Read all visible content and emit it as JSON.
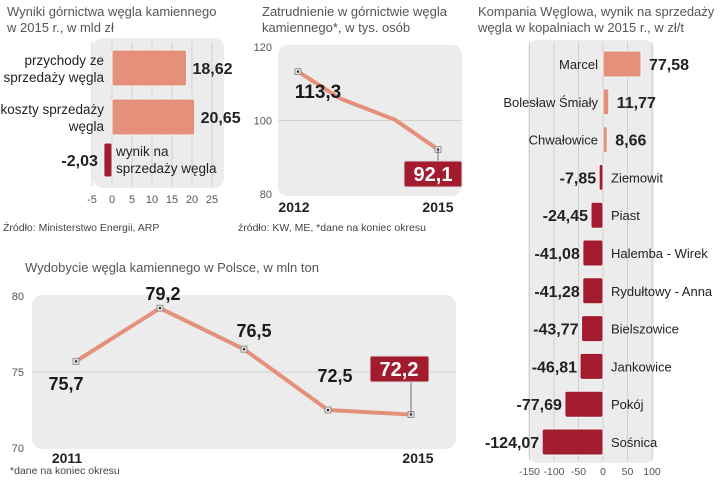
{
  "colors": {
    "positive_bar": "#e4907a",
    "negative_bar": "#a31b2e",
    "line": "#e4907a",
    "panel": "#ececec",
    "grid": "#c8c8c8",
    "highlight_label_bg": "#a31b2e"
  },
  "chart_data": [
    {
      "id": "mining-results",
      "type": "bar",
      "orientation": "horizontal",
      "title": "Wyniki górnictwa węgla kamiennego w 2015 r., w mld zł",
      "categories": [
        "przychody ze sprzedaży węgla",
        "koszty sprzedaży węgla",
        "wynik na sprzedaży węgla"
      ],
      "category_lines": [
        [
          "przychody ze",
          "sprzedaży węgla"
        ],
        [
          "koszty sprzedaży",
          "węgla"
        ],
        [
          "wynik na",
          "sprzedaży węgla"
        ]
      ],
      "values": [
        18.62,
        20.65,
        -2.03
      ],
      "value_labels": [
        "18,62",
        "20,65",
        "-2,03"
      ],
      "xlim": [
        -5,
        25
      ],
      "xticks": [
        "-5",
        "0",
        "5",
        "10",
        "15",
        "20",
        "25"
      ],
      "xtick_values": [
        -5,
        0,
        5,
        10,
        15,
        20,
        25
      ],
      "grid": true,
      "source": "Źródło: Ministerstwo Energii, ARP"
    },
    {
      "id": "employment",
      "type": "line",
      "title": "Zatrudnienie w górnictwie węgla kamiennego*, w tys. osób",
      "x": [
        "2012",
        "2013",
        "2014",
        "2015"
      ],
      "x_labels_shown": [
        "2012",
        "2015"
      ],
      "values": [
        113.3,
        106.0,
        100.2,
        92.1
      ],
      "point_labels": {
        "0": "113,3",
        "3": "92,1"
      },
      "highlighted_point": 3,
      "ylim": [
        80,
        120
      ],
      "yticks": [
        "80",
        "100",
        "120"
      ],
      "ytick_values": [
        80,
        100,
        120
      ],
      "grid": true,
      "source": "źródło: KW, ME,  *dane na koniec okresu"
    },
    {
      "id": "kw-mines",
      "type": "bar",
      "orientation": "horizontal",
      "title": "Kompania Węglowa, wynik na sprzedaży węgla w kopalniach w 2015 r., w zł/t",
      "categories": [
        "Marcel",
        "Bolesław Śmiały",
        "Chwałowice",
        "Ziemowit",
        "Piast",
        "Halemba - Wirek",
        "Rydułtowy - Anna",
        "Bielszowice",
        "Jankowice",
        "Pokój",
        "Sośnica"
      ],
      "values": [
        77.58,
        11.77,
        8.66,
        -7.85,
        -24.45,
        -41.08,
        -41.28,
        -43.77,
        -46.81,
        -77.69,
        -124.07
      ],
      "value_labels": [
        "77,58",
        "11,77",
        "8,66",
        "-7,85",
        "-24,45",
        "-41,08",
        "-41,28",
        "-43,77",
        "-46,81",
        "-77,69",
        "-124,07"
      ],
      "xlim": [
        -150,
        100
      ],
      "xticks": [
        "-150",
        "-100",
        "-50",
        "0",
        "50",
        "100"
      ],
      "xtick_values": [
        -150,
        -100,
        -50,
        0,
        50,
        100
      ],
      "grid": true
    },
    {
      "id": "production",
      "type": "line",
      "title": "Wydobycie węgla kamiennego w Polsce, w mln ton",
      "x": [
        "2011",
        "2012",
        "2013",
        "2014",
        "2015"
      ],
      "x_labels_shown": [
        "2011",
        "2015"
      ],
      "values": [
        75.7,
        79.2,
        76.5,
        72.5,
        72.2
      ],
      "point_labels": [
        "75,7",
        "79,2",
        "76,5",
        "72,5",
        "72,2"
      ],
      "highlighted_point": 4,
      "ylim": [
        70,
        80
      ],
      "yticks": [
        "70",
        "75",
        "80"
      ],
      "ytick_values": [
        70,
        75,
        80
      ],
      "grid": true,
      "source": "*dane na koniec okresu"
    }
  ]
}
